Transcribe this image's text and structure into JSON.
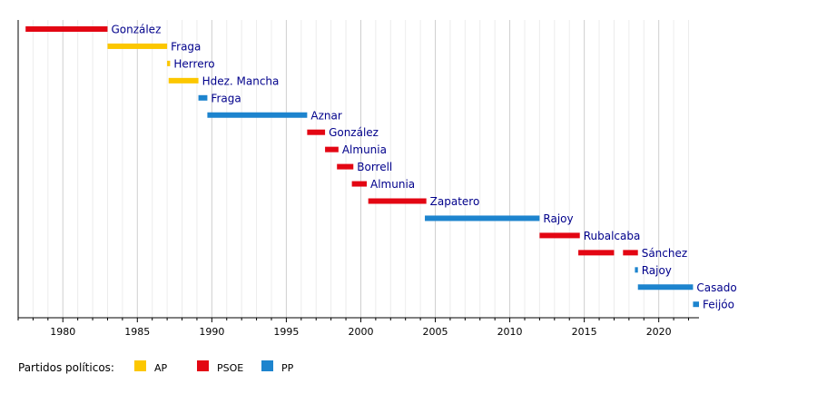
{
  "chart_data": {
    "type": "timeline",
    "title": "",
    "xlabel": "",
    "ylabel": "",
    "xlim": [
      1977,
      2022.7
    ],
    "x_ticks": [
      1980,
      1985,
      1990,
      1995,
      2000,
      2005,
      2010,
      2015,
      2020
    ],
    "minor_grid_step": 1,
    "grid": true,
    "colors": {
      "AP": "#fcc700",
      "PSOE": "#e30613",
      "PP": "#1d84ce"
    },
    "rows": [
      {
        "label": "González",
        "segments": [
          {
            "party": "PSOE",
            "start": 1977.5,
            "end": 1983.0
          }
        ]
      },
      {
        "label": "Fraga",
        "segments": [
          {
            "party": "AP",
            "start": 1983.0,
            "end": 1987.0
          }
        ]
      },
      {
        "label": "Herrero",
        "segments": [
          {
            "party": "AP",
            "start": 1987.0,
            "end": 1987.2
          }
        ]
      },
      {
        "label": "Hdez. Mancha",
        "segments": [
          {
            "party": "AP",
            "start": 1987.1,
            "end": 1989.1
          }
        ]
      },
      {
        "label": "Fraga",
        "segments": [
          {
            "party": "PP",
            "start": 1989.1,
            "end": 1989.7
          }
        ]
      },
      {
        "label": "Aznar",
        "segments": [
          {
            "party": "PP",
            "start": 1989.7,
            "end": 1996.4
          }
        ]
      },
      {
        "label": "González",
        "segments": [
          {
            "party": "PSOE",
            "start": 1996.4,
            "end": 1997.6
          }
        ]
      },
      {
        "label": "Almunia",
        "segments": [
          {
            "party": "PSOE",
            "start": 1997.6,
            "end": 1998.5
          }
        ]
      },
      {
        "label": "Borrell",
        "segments": [
          {
            "party": "PSOE",
            "start": 1998.4,
            "end": 1999.5
          }
        ]
      },
      {
        "label": "Almunia",
        "segments": [
          {
            "party": "PSOE",
            "start": 1999.4,
            "end": 2000.4
          }
        ]
      },
      {
        "label": "Zapatero",
        "segments": [
          {
            "party": "PSOE",
            "start": 2000.5,
            "end": 2004.4
          }
        ]
      },
      {
        "label": "Rajoy",
        "segments": [
          {
            "party": "PP",
            "start": 2004.3,
            "end": 2012.0
          }
        ]
      },
      {
        "label": "Rubalcaba",
        "segments": [
          {
            "party": "PSOE",
            "start": 2012.0,
            "end": 2014.7
          }
        ]
      },
      {
        "label": "Sánchez",
        "segments": [
          {
            "party": "PSOE",
            "start": 2014.6,
            "end": 2017.0
          },
          {
            "party": "PSOE",
            "start": 2017.6,
            "end": 2018.6
          }
        ]
      },
      {
        "label": "Rajoy",
        "segments": [
          {
            "party": "PP",
            "start": 2018.4,
            "end": 2018.6
          }
        ]
      },
      {
        "label": "Casado",
        "segments": [
          {
            "party": "PP",
            "start": 2018.6,
            "end": 2022.3
          }
        ]
      },
      {
        "label": "Feijóo",
        "segments": [
          {
            "party": "PP",
            "start": 2022.3,
            "end": 2022.7
          }
        ]
      }
    ],
    "legend": {
      "title": "Partidos políticos:",
      "placement": "bottom-left",
      "items": [
        {
          "key": "AP",
          "label": "AP"
        },
        {
          "key": "PSOE",
          "label": "PSOE"
        },
        {
          "key": "PP",
          "label": "PP"
        }
      ]
    }
  }
}
